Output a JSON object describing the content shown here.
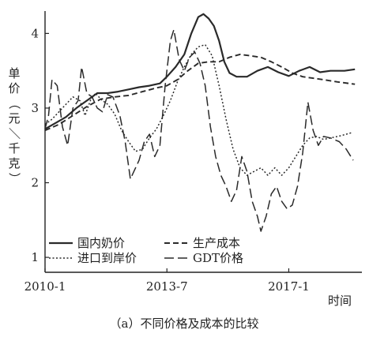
{
  "chart_data": {
    "type": "line",
    "caption": "（a）不同价格及成本的比较",
    "ylabel": "单价（元／千克）",
    "ylabel_chars": [
      "单",
      "价",
      "（",
      "元",
      "／",
      "千",
      "克",
      "）"
    ],
    "xlabel": "时间",
    "ylim": [
      0.8,
      4.3
    ],
    "xlim": [
      2010.0,
      2019.1
    ],
    "yticks": [
      {
        "value": 1,
        "label": "1"
      },
      {
        "value": 2,
        "label": "2"
      },
      {
        "value": 3,
        "label": "3"
      },
      {
        "value": 4,
        "label": "4"
      }
    ],
    "xticks": [
      {
        "value": 2010.0,
        "label": "2010-1"
      },
      {
        "value": 2013.5,
        "label": "2013-7"
      },
      {
        "value": 2017.0,
        "label": "2017-1"
      }
    ],
    "grid": false,
    "legend_position": "bottom-left",
    "series": [
      {
        "name": "国内奶价",
        "style": "solid",
        "points": [
          [
            2010.0,
            2.72
          ],
          [
            2010.3,
            2.8
          ],
          [
            2010.6,
            2.88
          ],
          [
            2010.9,
            3.0
          ],
          [
            2011.2,
            3.1
          ],
          [
            2011.5,
            3.2
          ],
          [
            2011.8,
            3.2
          ],
          [
            2012.1,
            3.22
          ],
          [
            2012.4,
            3.25
          ],
          [
            2012.7,
            3.28
          ],
          [
            2013.0,
            3.3
          ],
          [
            2013.3,
            3.33
          ],
          [
            2013.5,
            3.42
          ],
          [
            2013.75,
            3.55
          ],
          [
            2014.0,
            3.72
          ],
          [
            2014.2,
            4.0
          ],
          [
            2014.4,
            4.22
          ],
          [
            2014.55,
            4.26
          ],
          [
            2014.7,
            4.2
          ],
          [
            2014.85,
            4.1
          ],
          [
            2015.0,
            3.9
          ],
          [
            2015.15,
            3.62
          ],
          [
            2015.3,
            3.47
          ],
          [
            2015.5,
            3.42
          ],
          [
            2015.8,
            3.42
          ],
          [
            2016.1,
            3.5
          ],
          [
            2016.4,
            3.55
          ],
          [
            2016.7,
            3.48
          ],
          [
            2017.0,
            3.43
          ],
          [
            2017.3,
            3.5
          ],
          [
            2017.6,
            3.55
          ],
          [
            2017.9,
            3.48
          ],
          [
            2018.2,
            3.5
          ],
          [
            2018.6,
            3.5
          ],
          [
            2018.9,
            3.52
          ]
        ]
      },
      {
        "name": "生产成本",
        "style": "dashed",
        "points": [
          [
            2010.0,
            2.7
          ],
          [
            2010.4,
            2.78
          ],
          [
            2010.8,
            2.9
          ],
          [
            2011.2,
            3.02
          ],
          [
            2011.6,
            3.12
          ],
          [
            2012.0,
            3.15
          ],
          [
            2012.4,
            3.17
          ],
          [
            2012.8,
            3.22
          ],
          [
            2013.2,
            3.27
          ],
          [
            2013.5,
            3.3
          ],
          [
            2013.8,
            3.38
          ],
          [
            2014.1,
            3.5
          ],
          [
            2014.4,
            3.6
          ],
          [
            2014.7,
            3.62
          ],
          [
            2015.0,
            3.62
          ],
          [
            2015.3,
            3.68
          ],
          [
            2015.6,
            3.72
          ],
          [
            2015.9,
            3.7
          ],
          [
            2016.2,
            3.68
          ],
          [
            2016.5,
            3.62
          ],
          [
            2016.8,
            3.55
          ],
          [
            2017.1,
            3.47
          ],
          [
            2017.4,
            3.42
          ],
          [
            2017.7,
            3.4
          ],
          [
            2018.0,
            3.38
          ],
          [
            2018.4,
            3.35
          ],
          [
            2018.9,
            3.32
          ]
        ]
      },
      {
        "name": "进口到岸价",
        "style": "dotted",
        "points": [
          [
            2010.0,
            2.78
          ],
          [
            2010.2,
            2.85
          ],
          [
            2010.4,
            2.95
          ],
          [
            2010.6,
            3.05
          ],
          [
            2010.8,
            3.15
          ],
          [
            2011.0,
            3.1
          ],
          [
            2011.15,
            2.9
          ],
          [
            2011.3,
            3.1
          ],
          [
            2011.45,
            3.2
          ],
          [
            2011.6,
            3.12
          ],
          [
            2011.8,
            3.05
          ],
          [
            2012.0,
            2.92
          ],
          [
            2012.2,
            2.7
          ],
          [
            2012.4,
            2.55
          ],
          [
            2012.6,
            2.42
          ],
          [
            2012.8,
            2.45
          ],
          [
            2013.0,
            2.6
          ],
          [
            2013.2,
            2.72
          ],
          [
            2013.4,
            2.9
          ],
          [
            2013.6,
            3.1
          ],
          [
            2013.8,
            3.35
          ],
          [
            2014.0,
            3.55
          ],
          [
            2014.2,
            3.72
          ],
          [
            2014.4,
            3.82
          ],
          [
            2014.6,
            3.85
          ],
          [
            2014.8,
            3.7
          ],
          [
            2015.0,
            3.3
          ],
          [
            2015.2,
            2.85
          ],
          [
            2015.4,
            2.45
          ],
          [
            2015.6,
            2.2
          ],
          [
            2015.8,
            2.1
          ],
          [
            2016.0,
            2.15
          ],
          [
            2016.2,
            2.2
          ],
          [
            2016.4,
            2.1
          ],
          [
            2016.6,
            2.2
          ],
          [
            2016.8,
            2.1
          ],
          [
            2017.0,
            2.2
          ],
          [
            2017.2,
            2.35
          ],
          [
            2017.4,
            2.5
          ],
          [
            2017.6,
            2.6
          ],
          [
            2017.8,
            2.62
          ],
          [
            2018.0,
            2.58
          ],
          [
            2018.2,
            2.6
          ],
          [
            2018.5,
            2.63
          ],
          [
            2018.8,
            2.67
          ]
        ]
      },
      {
        "name": "GDT价格",
        "style": "longdash",
        "points": [
          [
            2010.0,
            2.72
          ],
          [
            2010.1,
            2.9
          ],
          [
            2010.2,
            3.38
          ],
          [
            2010.35,
            3.3
          ],
          [
            2010.5,
            2.75
          ],
          [
            2010.65,
            2.5
          ],
          [
            2010.8,
            3.0
          ],
          [
            2010.95,
            3.1
          ],
          [
            2011.05,
            3.55
          ],
          [
            2011.2,
            3.2
          ],
          [
            2011.35,
            3.15
          ],
          [
            2011.5,
            3.0
          ],
          [
            2011.65,
            2.95
          ],
          [
            2011.8,
            3.18
          ],
          [
            2011.95,
            3.15
          ],
          [
            2012.15,
            2.9
          ],
          [
            2012.3,
            2.55
          ],
          [
            2012.45,
            2.05
          ],
          [
            2012.55,
            2.15
          ],
          [
            2012.7,
            2.3
          ],
          [
            2012.85,
            2.55
          ],
          [
            2013.0,
            2.65
          ],
          [
            2013.15,
            2.35
          ],
          [
            2013.3,
            2.5
          ],
          [
            2013.45,
            3.3
          ],
          [
            2013.6,
            3.9
          ],
          [
            2013.7,
            4.05
          ],
          [
            2013.85,
            3.65
          ],
          [
            2014.0,
            3.5
          ],
          [
            2014.15,
            3.68
          ],
          [
            2014.3,
            3.75
          ],
          [
            2014.45,
            3.6
          ],
          [
            2014.6,
            3.3
          ],
          [
            2014.75,
            2.75
          ],
          [
            2014.9,
            2.35
          ],
          [
            2015.05,
            2.1
          ],
          [
            2015.2,
            1.95
          ],
          [
            2015.35,
            1.75
          ],
          [
            2015.5,
            1.9
          ],
          [
            2015.65,
            2.35
          ],
          [
            2015.8,
            2.15
          ],
          [
            2015.95,
            1.75
          ],
          [
            2016.1,
            1.55
          ],
          [
            2016.2,
            1.35
          ],
          [
            2016.35,
            1.55
          ],
          [
            2016.5,
            1.85
          ],
          [
            2016.65,
            1.95
          ],
          [
            2016.8,
            1.75
          ],
          [
            2016.95,
            1.65
          ],
          [
            2017.1,
            1.7
          ],
          [
            2017.25,
            1.95
          ],
          [
            2017.4,
            2.4
          ],
          [
            2017.55,
            3.08
          ],
          [
            2017.7,
            2.7
          ],
          [
            2017.85,
            2.5
          ],
          [
            2018.0,
            2.62
          ],
          [
            2018.2,
            2.6
          ],
          [
            2018.45,
            2.55
          ],
          [
            2018.65,
            2.45
          ],
          [
            2018.85,
            2.3
          ]
        ]
      }
    ]
  }
}
